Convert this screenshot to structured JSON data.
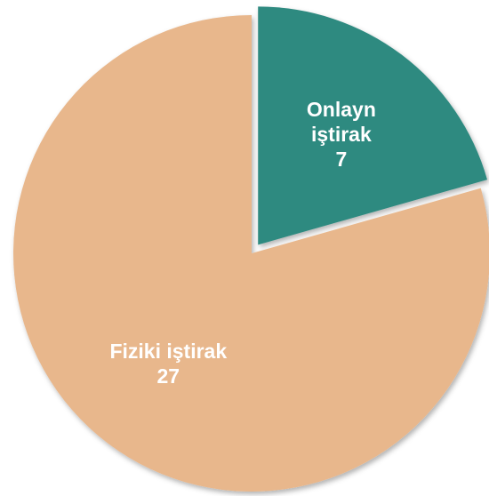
{
  "chart_data": {
    "type": "pie",
    "categories": [
      "Onlayn iştirak",
      "Fiziki iştirak"
    ],
    "values": [
      7,
      27
    ],
    "colors": [
      "#2f8a80",
      "#e8b78c"
    ]
  }
}
